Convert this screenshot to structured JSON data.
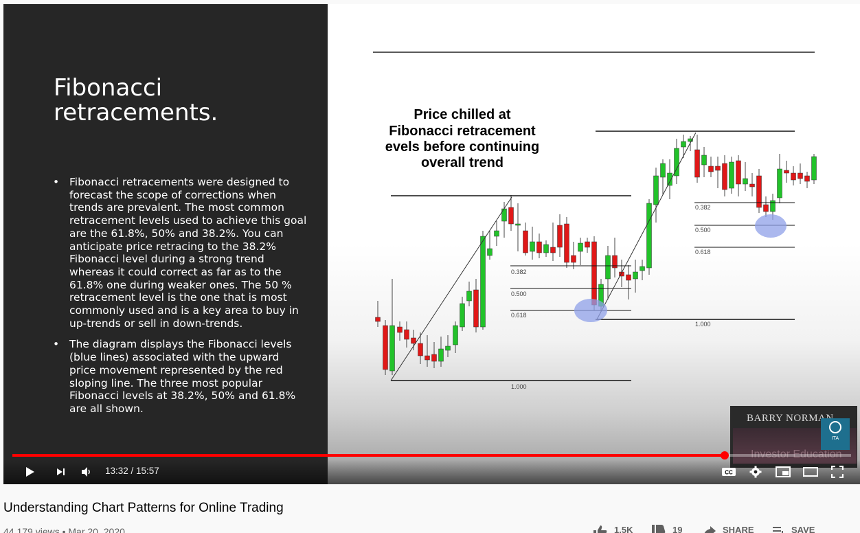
{
  "slide": {
    "title": "Fibonacci retracements.",
    "bullets": [
      "Fibonacci retracements were designed to forecast the scope of corrections when trends are prevalent. The most common retracement levels used to achieve this goal are the 61.8%, 50% and 38.2%. You can anticipate price retracing to the 38.2% Fibonacci level during a strong trend whereas it could correct as far as to the 61.8% one during weaker ones. The 50 % retracement level is the one that is most commonly used and is a key area to buy in up-trends or sell in down-trends.",
      "The diagram displays the Fibonacci levels (blue lines) associated with the upward price movement represented by the red sloping line. The three most popular Fibonacci levels at 38.2%, 50% and 61.8% are all shown."
    ],
    "annotation": [
      "Price chilled at",
      "Fibonacci retracement",
      "evels before continuing",
      "overall trend"
    ],
    "levels_first": [
      "0.382",
      "0.500",
      "0.618",
      "1.000"
    ],
    "levels_second": [
      "0.382",
      "0.500",
      "0.618",
      "1.000"
    ]
  },
  "watermark": {
    "name": "BARRY NORMAN",
    "subtitle": "Investor Education",
    "logo_text": "ITA"
  },
  "player": {
    "time": "13:32 / 15:57",
    "progress_fraction": 0.849,
    "icons": [
      "play-icon",
      "next-icon",
      "volume-icon",
      "captions-icon",
      "settings-icon",
      "miniplayer-icon",
      "theater-icon",
      "fullscreen-icon"
    ],
    "captions_label": "CC"
  },
  "video": {
    "title": "Understanding Chart Patterns for Online Trading",
    "meta": "44,179 views • Mar 20, 2020",
    "like_count": "1.5K",
    "dislike_count": "19",
    "share_label": "SHARE",
    "save_label": "SAVE"
  },
  "colors": {
    "progress": "#ff0000",
    "bull": "#22c22a",
    "bear": "#e01818",
    "highlight": "#8fa0e8"
  }
}
